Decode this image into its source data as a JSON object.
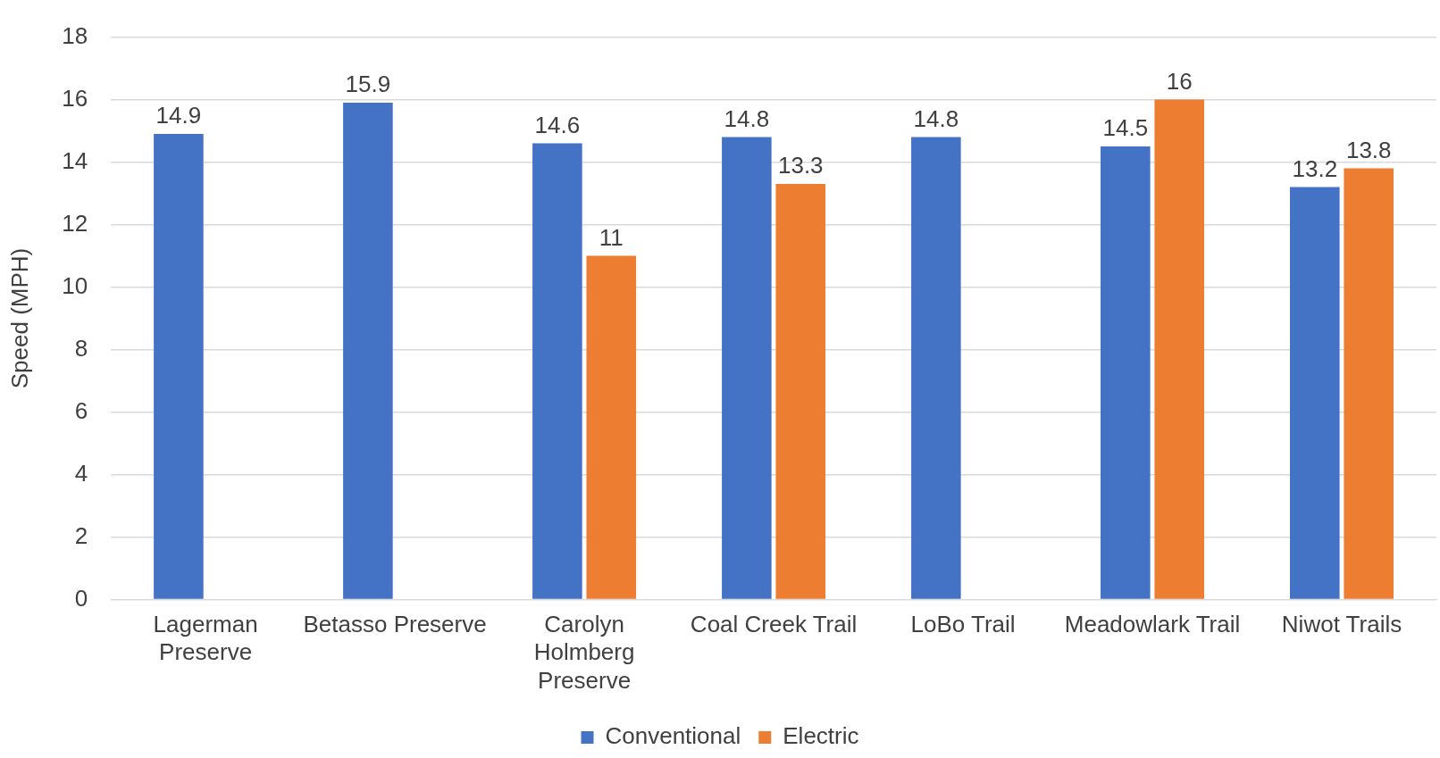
{
  "chart_data": {
    "type": "bar",
    "ylabel": "Speed (MPH)",
    "categories": [
      "Lagerman Preserve",
      "Betasso Preserve",
      "Carolyn Holmberg Preserve",
      "Coal Creek Trail",
      "LoBo Trail",
      "Meadowlark Trail",
      "Niwot Trails"
    ],
    "series": [
      {
        "name": "Conventional",
        "color": "#4472c4",
        "values": [
          14.9,
          15.9,
          14.6,
          14.8,
          14.8,
          14.5,
          13.2
        ]
      },
      {
        "name": "Electric",
        "color": "#ed7d31",
        "values": [
          null,
          null,
          11,
          13.3,
          null,
          16,
          13.8
        ]
      }
    ],
    "ylim": [
      0,
      18
    ],
    "yticks": [
      0,
      2,
      4,
      6,
      8,
      10,
      12,
      14,
      16,
      18
    ],
    "grid": "y",
    "legend": "bottom",
    "data_labels": true
  }
}
